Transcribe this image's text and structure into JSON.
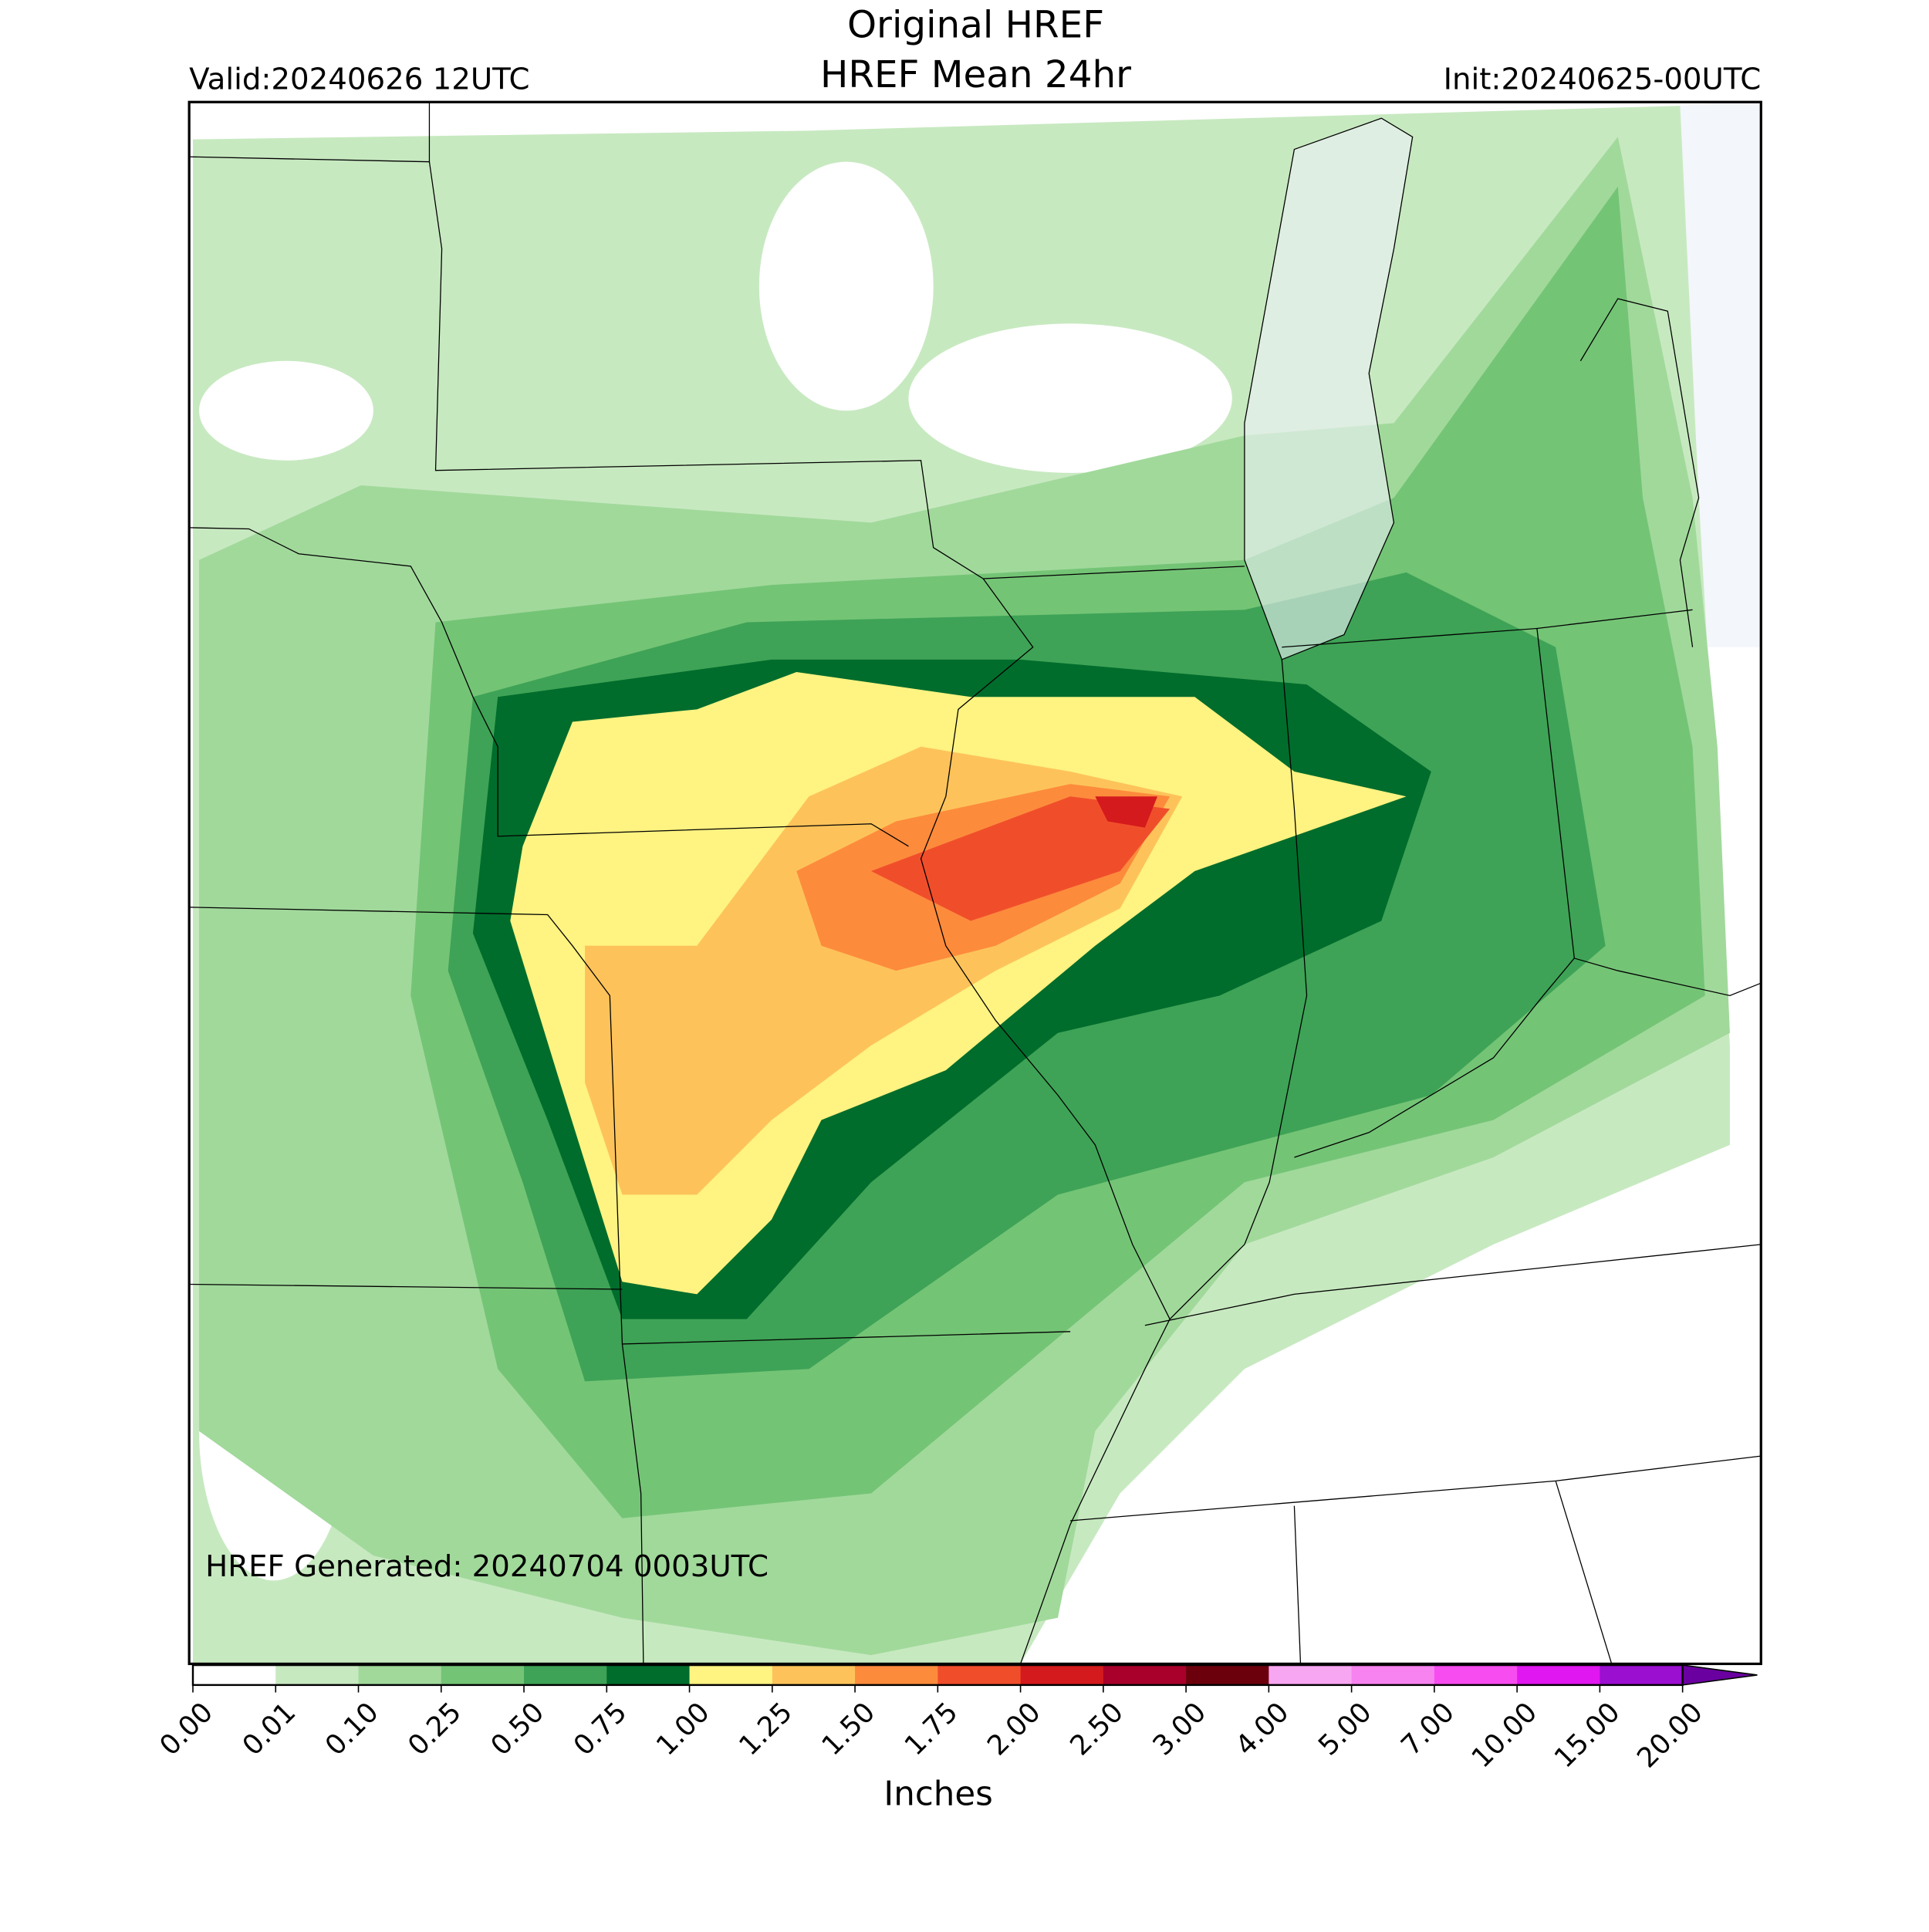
{
  "header": {
    "title": "Original HREF",
    "subtitle": "HREF Mean 24hr",
    "valid": "Valid:20240626 12UTC",
    "init": "Init:20240625-00UTC"
  },
  "annotation": "HREF Generated: 20240704 0003UTC",
  "colorbar": {
    "label": "Inches",
    "ticks": [
      {
        "value": 0,
        "label": "0.00"
      },
      {
        "value": 0.01,
        "label": "0.01"
      },
      {
        "value": 0.1,
        "label": "0.10"
      },
      {
        "value": 0.25,
        "label": "0.25"
      },
      {
        "value": 0.5,
        "label": "0.50"
      },
      {
        "value": 0.75,
        "label": "0.75"
      },
      {
        "value": 1,
        "label": "1.00"
      },
      {
        "value": 1.25,
        "label": "1.25"
      },
      {
        "value": 1.5,
        "label": "1.50"
      },
      {
        "value": 1.75,
        "label": "1.75"
      },
      {
        "value": 2,
        "label": "2.00"
      },
      {
        "value": 2.5,
        "label": "2.50"
      },
      {
        "value": 3,
        "label": "3.00"
      },
      {
        "value": 4,
        "label": "4.00"
      },
      {
        "value": 5,
        "label": "5.00"
      },
      {
        "value": 7,
        "label": "7.00"
      },
      {
        "value": 10,
        "label": "10.00"
      },
      {
        "value": 15,
        "label": "15.00"
      },
      {
        "value": 20,
        "label": "20.00"
      }
    ],
    "colors": [
      "#ffffff",
      "#c7e9c0",
      "#a1d99b",
      "#74c476",
      "#3ea356",
      "#006d2c",
      "#fff381",
      "#fdc35a",
      "#fd8b3c",
      "#f04e2b",
      "#d41a1c",
      "#a8002a",
      "#6b000c",
      "#f7a6f2",
      "#f783f0",
      "#f74cf0",
      "#e017f0",
      "#9a0fd0",
      "#6a00a0"
    ]
  }
}
